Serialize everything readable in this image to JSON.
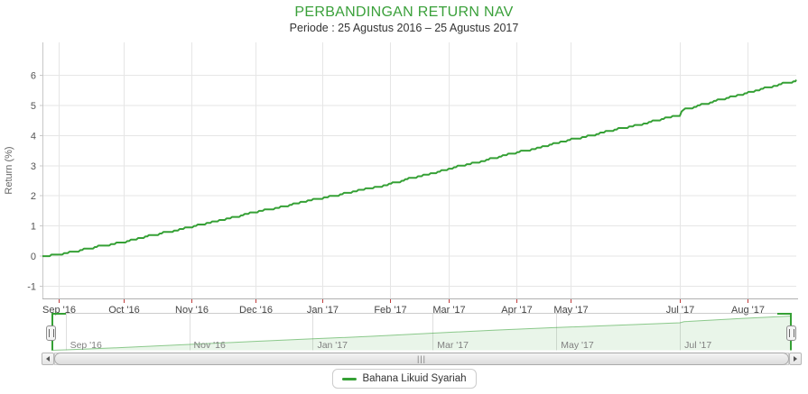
{
  "chart_data": {
    "type": "line",
    "title": "PERBANDINGAN RETURN NAV",
    "subtitle": "Periode : 25 Agustus 2016 – 25 Agustus 2017",
    "ylabel": "Return (%)",
    "ylim": [
      -1,
      6
    ],
    "yticks": [
      -1,
      0,
      1,
      2,
      3,
      4,
      5,
      6
    ],
    "grid": true,
    "legend_position": "bottom-center",
    "x_range": [
      "25 Agustus 2016",
      "25 Agustus 2017"
    ],
    "x_ticks": [
      {
        "label": "Sep '16",
        "f": 0.0216
      },
      {
        "label": "Oct '16",
        "f": 0.1078
      },
      {
        "label": "Nov '16",
        "f": 0.1976
      },
      {
        "label": "Dec '16",
        "f": 0.2826
      },
      {
        "label": "Jan '17",
        "f": 0.3713
      },
      {
        "label": "Feb '17",
        "f": 0.4611
      },
      {
        "label": "Mar '17",
        "f": 0.5389
      },
      {
        "label": "Apr '17",
        "f": 0.6287
      },
      {
        "label": "May '17",
        "f": 0.7006
      },
      {
        "label": "Jul '17",
        "f": 0.8455
      },
      {
        "label": "Aug '17",
        "f": 0.9353
      }
    ],
    "series": [
      {
        "name": "Bahana Likuid Syariah",
        "color": "#35a035",
        "points": [
          {
            "x": "25 Aug '16",
            "f": 0.0,
            "tf": 0.0,
            "return_pct": 0.0
          },
          {
            "x": "Sep '16",
            "f": 0.0216,
            "tf": 0.019,
            "return_pct": 0.08
          },
          {
            "x": "Oct '16",
            "f": 0.1078,
            "tf": 0.101,
            "return_pct": 0.5
          },
          {
            "x": "Nov '16",
            "f": 0.1976,
            "tf": 0.186,
            "return_pct": 1.0
          },
          {
            "x": "Dec '16",
            "f": 0.2826,
            "tf": 0.268,
            "return_pct": 1.48
          },
          {
            "x": "Jan '17",
            "f": 0.3713,
            "tf": 0.353,
            "return_pct": 1.95
          },
          {
            "x": "Feb '17",
            "f": 0.4611,
            "tf": 0.438,
            "return_pct": 2.42
          },
          {
            "x": "Mar '17",
            "f": 0.5389,
            "tf": 0.515,
            "return_pct": 2.92
          },
          {
            "x": "Apr '17",
            "f": 0.6287,
            "tf": 0.6,
            "return_pct": 3.45
          },
          {
            "x": "May '17",
            "f": 0.7006,
            "tf": 0.682,
            "return_pct": 3.88
          },
          {
            "x": "Jun '17",
            "f": 0.776,
            "tf": 0.767,
            "return_pct": 4.3
          },
          {
            "x": "Jul '17",
            "f": 0.8455,
            "tf": 0.849,
            "return_pct": 4.7
          },
          {
            "x": "Jul '17 (step)",
            "f": 0.8495,
            "tf": 0.8545,
            "return_pct": 4.88
          },
          {
            "x": "Aug '17",
            "f": 0.9353,
            "tf": 0.934,
            "return_pct": 5.45
          },
          {
            "x": "25 Aug '17",
            "f": 1.0,
            "tf": 1.0,
            "return_pct": 5.85
          }
        ]
      }
    ]
  },
  "navigator": {
    "x_labels": [
      {
        "label": "Sep '16",
        "tf": 0.019
      },
      {
        "label": "Nov '16",
        "tf": 0.186
      },
      {
        "label": "Jan '17",
        "tf": 0.353
      },
      {
        "label": "Mar '17",
        "tf": 0.515
      },
      {
        "label": "May '17",
        "tf": 0.682
      },
      {
        "label": "Jul '17",
        "tf": 0.849
      }
    ]
  },
  "scrollbar": {
    "grip": "|||"
  },
  "legend": {
    "items": [
      {
        "label": "Bahana Likuid Syariah",
        "color": "#35a035"
      }
    ]
  },
  "icons": {
    "scrollbar_left": "chevron-left",
    "scrollbar_right": "chevron-right",
    "navigator_handle": "grip-lines",
    "legend_swatch": "series-line"
  },
  "colors": {
    "title_green": "#3aa03a",
    "series_green": "#35a035",
    "grid": "#e6e6e6",
    "nav_grid": "#dedede",
    "y_axis_line": "#c8c8c8",
    "x_axis_line": "#b0b0b0",
    "x_tick_red": "#c03c3c",
    "x_label": "#444444",
    "y_label": "#555555",
    "y_title": "#666666",
    "nav_label": "#808080",
    "nav_outline_gray": "#cccccc"
  }
}
